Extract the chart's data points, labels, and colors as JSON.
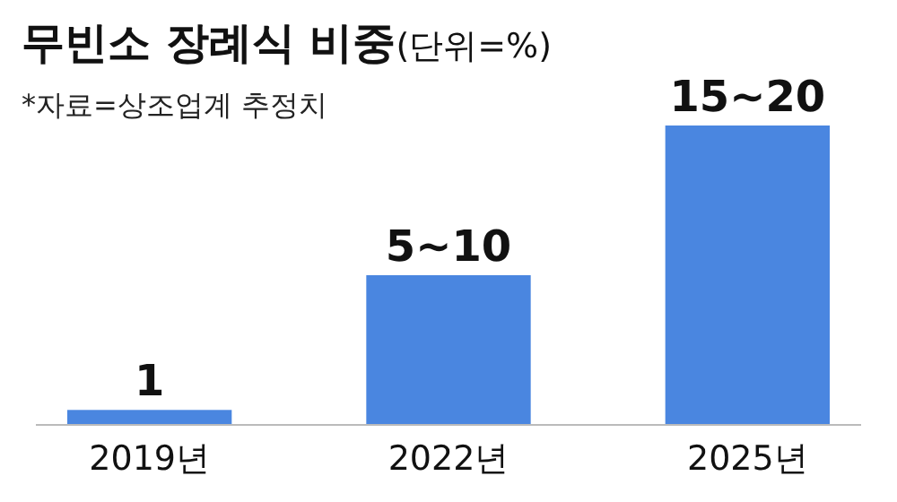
{
  "chart_data": {
    "type": "bar",
    "title": "**무빈소 장례식 비중**(단위=%)",
    "annotations": [
      "*자료=상조업계 추정치"
    ],
    "categories": [
      "2019년",
      "2022년",
      "2025년"
    ],
    "values": [
      1,
      10,
      20
    ],
    "value_labels": [
      "1",
      "5~10",
      "15~20"
    ],
    "color": "#4a86e0"
  }
}
